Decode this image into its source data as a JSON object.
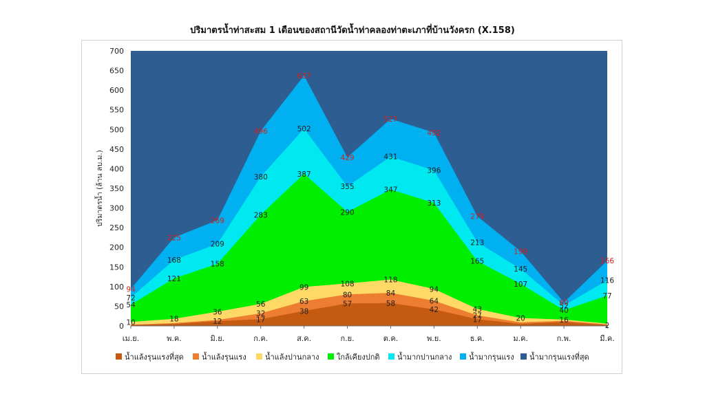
{
  "chart_data": {
    "type": "area",
    "stacked": true,
    "title": "ปริมาตรน้ำท่าสะสม 1 เดือนของสถานีวัดน้ำท่าคลองท่าตะเภาที่บ้านวังครก (X.158)",
    "ylabel": "ปริมาตรน้ำ (ล้าน ลบ.ม.)",
    "xlabel": "",
    "ylim": [
      0,
      700
    ],
    "yticks": [
      0,
      50,
      100,
      150,
      200,
      250,
      300,
      350,
      400,
      450,
      500,
      550,
      600,
      650,
      700
    ],
    "categories": [
      "เม.ย.",
      "พ.ค.",
      "มิ.ย.",
      "ก.ค.",
      "ส.ค.",
      "ก.ย.",
      "ต.ค.",
      "พ.ย.",
      "ธ.ค.",
      "ม.ค.",
      "ก.พ.",
      "มี.ค."
    ],
    "legend_position": "bottom",
    "series": [
      {
        "name": "น้ำแล้งรุนแรงที่สุด",
        "color": "#c55a11",
        "values": [
          2,
          5,
          12,
          17,
          38,
          57,
          58,
          42,
          17,
          5,
          10,
          2
        ]
      },
      {
        "name": "น้ำแล้งรุนแรง",
        "color": "#ed7d31",
        "values": [
          3,
          7,
          15,
          32,
          63,
          80,
          84,
          64,
          27,
          9,
          13,
          4
        ]
      },
      {
        "name": "น้ำแล้งปานกลาง",
        "color": "#ffd966",
        "values": [
          10,
          18,
          36,
          56,
          99,
          108,
          118,
          94,
          43,
          20,
          16,
          6
        ]
      },
      {
        "name": "ใกล้เคียงปกติ",
        "color": "#00ee00",
        "values": [
          54,
          121,
          158,
          283,
          387,
          290,
          347,
          313,
          165,
          107,
          40,
          77
        ]
      },
      {
        "name": "น้ำมากปานกลาง",
        "color": "#00e8f0",
        "values": [
          72,
          168,
          209,
          380,
          502,
          355,
          431,
          396,
          213,
          145,
          52,
          116
        ]
      },
      {
        "name": "น้ำมากรุนแรง",
        "color": "#00b0f0",
        "values": [
          94,
          225,
          269,
          496,
          637,
          429,
          527,
          492,
          279,
          190,
          60,
          166
        ]
      },
      {
        "name": "น้ำมากรุนแรงที่สุด",
        "color": "#2e5e91",
        "values": [
          700,
          700,
          700,
          700,
          700,
          700,
          700,
          700,
          700,
          700,
          700,
          700
        ]
      }
    ],
    "data_labels": {
      "series_0": [
        "",
        "",
        "12",
        "17",
        "38",
        "57",
        "58",
        "42",
        "17",
        "",
        "",
        "2"
      ],
      "series_1": [
        "",
        "",
        "",
        "32",
        "63",
        "80",
        "84",
        "64",
        "27",
        "",
        "",
        ""
      ],
      "series_2": [
        "10",
        "18",
        "36",
        "56",
        "99",
        "108",
        "118",
        "94",
        "43",
        "20",
        "16",
        ""
      ],
      "series_3": [
        "54",
        "121",
        "158",
        "283",
        "387",
        "290",
        "347",
        "313",
        "165",
        "107",
        "40",
        "77"
      ],
      "series_4": [
        "72",
        "168",
        "209",
        "380",
        "502",
        "355",
        "431",
        "396",
        "213",
        "145",
        "52",
        "116"
      ],
      "series_5": [
        "94",
        "225",
        "269",
        "496",
        "637",
        "429",
        "527",
        "492",
        "279",
        "190",
        "60",
        "166"
      ]
    }
  }
}
